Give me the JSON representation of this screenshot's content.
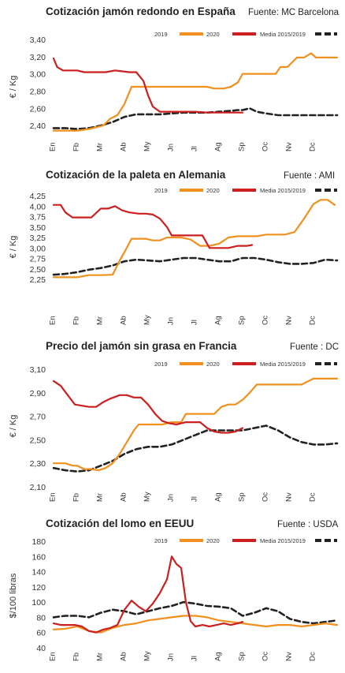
{
  "legend": {
    "series": [
      {
        "name": "2019",
        "color": "#f0901e",
        "style": "solid"
      },
      {
        "name": "2020",
        "color": "#cc1f1f",
        "style": "solid"
      },
      {
        "name": "Media 2015/2019",
        "color": "#222222",
        "style": "dashed"
      }
    ]
  },
  "months": [
    "En",
    "Fb",
    "Mr",
    "Ab",
    "My",
    "Jn",
    "Jl",
    "Ag",
    "Sp",
    "Oc",
    "Nv",
    "Dc"
  ],
  "chart_data": [
    {
      "type": "line",
      "title": "Cotización jamón redondo en España",
      "source": "Fuente: MC Barcelona",
      "ylabel": "€ / Kg",
      "ylim": [
        2.3,
        3.4
      ],
      "yticks": [
        "3,40",
        "3,20",
        "3,00",
        "2,80",
        "2,60",
        "2,40"
      ],
      "ytick_values": [
        3.4,
        3.2,
        3.0,
        2.8,
        2.6,
        2.4
      ],
      "series": [
        {
          "name": "2019",
          "color": "#f0901e",
          "style": "solid",
          "x": [
            0,
            0.4,
            1,
            1.5,
            1.8,
            2.1,
            2.4,
            2.7,
            3.0,
            3.3,
            3.5,
            3.8,
            4.2,
            5,
            6,
            6.5,
            6.8,
            7.2,
            7.5,
            7.8,
            8.0,
            8.5,
            9,
            9.4,
            9.6,
            9.9,
            10.3,
            10.6,
            10.9,
            11.1,
            11.3,
            11.6,
            12
          ],
          "y": [
            2.34,
            2.34,
            2.34,
            2.36,
            2.38,
            2.4,
            2.48,
            2.52,
            2.65,
            2.85,
            2.85,
            2.85,
            2.85,
            2.85,
            2.85,
            2.85,
            2.83,
            2.83,
            2.85,
            2.9,
            3.0,
            3.0,
            3.0,
            3.0,
            3.08,
            3.08,
            3.19,
            3.19,
            3.24,
            3.19,
            3.19,
            3.19,
            3.19
          ]
        },
        {
          "name": "2020",
          "color": "#cc1f1f",
          "style": "solid",
          "x": [
            0,
            0.15,
            0.4,
            0.7,
            1,
            1.3,
            1.6,
            2.0,
            2.2,
            2.6,
            2.9,
            3.2,
            3.5,
            3.8,
            4.0,
            4.2,
            4.5,
            5,
            5.5,
            6,
            6.5,
            7,
            7.5,
            8.0
          ],
          "y": [
            3.18,
            3.08,
            3.04,
            3.04,
            3.04,
            3.02,
            3.02,
            3.02,
            3.02,
            3.04,
            3.03,
            3.02,
            3.02,
            2.92,
            2.75,
            2.62,
            2.56,
            2.56,
            2.56,
            2.56,
            2.55,
            2.55,
            2.55,
            2.55
          ]
        },
        {
          "name": "Media 2015/2019",
          "color": "#222222",
          "style": "dashed",
          "x": [
            0,
            0.5,
            1,
            1.5,
            2,
            2.5,
            3,
            3.5,
            4,
            4.5,
            5,
            5.5,
            6,
            6.5,
            7,
            7.5,
            7.8,
            8.0,
            8.3,
            8.6,
            9,
            9.5,
            10,
            10.5,
            11,
            11.5,
            12
          ],
          "y": [
            2.37,
            2.37,
            2.36,
            2.37,
            2.4,
            2.44,
            2.5,
            2.53,
            2.53,
            2.53,
            2.54,
            2.55,
            2.55,
            2.55,
            2.56,
            2.57,
            2.58,
            2.58,
            2.6,
            2.56,
            2.54,
            2.52,
            2.52,
            2.52,
            2.52,
            2.52,
            2.52
          ]
        }
      ]
    },
    {
      "type": "line",
      "title": "Cotización de la paleta en Alemania",
      "source": "Fuente : AMI",
      "ylabel": "€ / Kg",
      "ylim": [
        2.25,
        4.25
      ],
      "yticks": [
        "4,25",
        "4,00",
        "3,75",
        "3,50",
        "3,25",
        "3,00",
        "2,75",
        "2,50",
        "2,25"
      ],
      "ytick_values": [
        4.25,
        4.0,
        3.75,
        3.5,
        3.25,
        3.0,
        2.75,
        2.5,
        2.25
      ],
      "series": [
        {
          "name": "2019",
          "color": "#f0901e",
          "style": "solid",
          "x": [
            0,
            0.5,
            1,
            1.5,
            2,
            2.5,
            2.8,
            3.0,
            3.3,
            3.6,
            3.9,
            4.2,
            4.5,
            4.8,
            5.1,
            5.4,
            5.8,
            6.2,
            6.6,
            7.0,
            7.4,
            7.8,
            8.2,
            8.6,
            9,
            9.4,
            9.8,
            10.2,
            10.6,
            11.0,
            11.3,
            11.6,
            11.9
          ],
          "y": [
            2.3,
            2.3,
            2.3,
            2.35,
            2.35,
            2.36,
            2.7,
            2.9,
            3.22,
            3.22,
            3.22,
            3.18,
            3.18,
            3.25,
            3.25,
            3.25,
            3.2,
            3.05,
            3.05,
            3.1,
            3.25,
            3.28,
            3.28,
            3.28,
            3.32,
            3.32,
            3.32,
            3.38,
            3.7,
            4.05,
            4.15,
            4.15,
            4.03
          ]
        },
        {
          "name": "2020",
          "color": "#cc1f1f",
          "style": "solid",
          "x": [
            0,
            0.3,
            0.5,
            0.8,
            1,
            1.3,
            1.6,
            2.0,
            2.3,
            2.6,
            2.9,
            3.2,
            3.6,
            3.9,
            4.2,
            4.5,
            4.8,
            5.0,
            5.3,
            5.6,
            6.0,
            6.3,
            6.6,
            7.0,
            7.4,
            7.8,
            8.2,
            8.4
          ],
          "y": [
            4.03,
            4.03,
            3.85,
            3.73,
            3.73,
            3.73,
            3.73,
            3.94,
            3.94,
            4.0,
            3.9,
            3.85,
            3.82,
            3.82,
            3.8,
            3.7,
            3.5,
            3.3,
            3.3,
            3.3,
            3.3,
            3.3,
            3.0,
            3.0,
            3.0,
            3.05,
            3.05,
            3.07
          ]
        },
        {
          "name": "Media 2015/2019",
          "color": "#222222",
          "style": "dashed",
          "x": [
            0,
            0.5,
            1,
            1.5,
            2,
            2.5,
            3,
            3.5,
            4,
            4.5,
            5,
            5.5,
            6,
            6.5,
            7,
            7.5,
            8,
            8.5,
            9,
            9.5,
            10,
            10.5,
            11,
            11.5,
            12
          ],
          "y": [
            2.36,
            2.38,
            2.42,
            2.48,
            2.52,
            2.58,
            2.68,
            2.72,
            2.7,
            2.68,
            2.72,
            2.76,
            2.76,
            2.72,
            2.68,
            2.68,
            2.76,
            2.76,
            2.72,
            2.66,
            2.62,
            2.62,
            2.64,
            2.72,
            2.7
          ]
        }
      ]
    },
    {
      "type": "line",
      "title": "Precio del jamón sin grasa en Francia",
      "source": "Fuente : DC",
      "ylabel": "€ / Kg",
      "ylim": [
        2.1,
        3.1
      ],
      "yticks": [
        "3,10",
        "2,90",
        "2,70",
        "2,50",
        "2,30",
        "2,10"
      ],
      "ytick_values": [
        3.1,
        2.9,
        2.7,
        2.5,
        2.3,
        2.1
      ],
      "series": [
        {
          "name": "2019",
          "color": "#f0901e",
          "style": "solid",
          "x": [
            0,
            0.5,
            0.8,
            1.0,
            1.3,
            1.6,
            1.9,
            2.2,
            2.5,
            2.8,
            3.1,
            3.4,
            3.6,
            3.8,
            4.2,
            4.6,
            5,
            5.4,
            5.6,
            6,
            6.4,
            6.8,
            7.1,
            7.4,
            7.7,
            8.0,
            8.3,
            8.6,
            9,
            9.5,
            10,
            10.5,
            11,
            11.5,
            12
          ],
          "y": [
            2.3,
            2.3,
            2.28,
            2.28,
            2.25,
            2.25,
            2.24,
            2.26,
            2.3,
            2.38,
            2.48,
            2.58,
            2.63,
            2.63,
            2.63,
            2.63,
            2.65,
            2.65,
            2.72,
            2.72,
            2.72,
            2.72,
            2.78,
            2.8,
            2.8,
            2.84,
            2.9,
            2.97,
            2.97,
            2.97,
            2.97,
            2.97,
            3.02,
            3.02,
            3.02
          ]
        },
        {
          "name": "2020",
          "color": "#cc1f1f",
          "style": "solid",
          "x": [
            0,
            0.3,
            0.6,
            0.9,
            1.2,
            1.5,
            1.8,
            2.1,
            2.4,
            2.8,
            3.1,
            3.4,
            3.7,
            4.0,
            4.3,
            4.6,
            4.9,
            5.2,
            5.6,
            5.9,
            6.2,
            6.5,
            6.8,
            7.1,
            7.4,
            7.7,
            8.0
          ],
          "y": [
            3.0,
            2.96,
            2.88,
            2.8,
            2.79,
            2.78,
            2.78,
            2.82,
            2.85,
            2.88,
            2.88,
            2.86,
            2.86,
            2.8,
            2.72,
            2.66,
            2.64,
            2.63,
            2.65,
            2.65,
            2.65,
            2.6,
            2.57,
            2.56,
            2.56,
            2.57,
            2.6
          ]
        },
        {
          "name": "Media 2015/2019",
          "color": "#222222",
          "style": "dashed",
          "x": [
            0,
            0.5,
            1,
            1.5,
            2,
            2.5,
            3,
            3.5,
            4,
            4.5,
            5,
            5.5,
            6,
            6.5,
            7,
            7.5,
            8,
            8.5,
            9,
            9.5,
            10,
            10.5,
            11,
            11.5,
            12
          ],
          "y": [
            2.26,
            2.24,
            2.23,
            2.24,
            2.28,
            2.32,
            2.38,
            2.42,
            2.44,
            2.44,
            2.46,
            2.5,
            2.54,
            2.58,
            2.58,
            2.58,
            2.58,
            2.6,
            2.62,
            2.58,
            2.52,
            2.48,
            2.46,
            2.46,
            2.47
          ]
        }
      ]
    },
    {
      "type": "line",
      "title": "Cotización del lomo en EEUU",
      "source": "Fuente : USDA",
      "ylabel": "$/100 libras",
      "ylim": [
        40,
        180
      ],
      "yticks": [
        "180",
        "160",
        "140",
        "120",
        "100",
        "80",
        "60",
        "40"
      ],
      "ytick_values": [
        180,
        160,
        140,
        120,
        100,
        80,
        60,
        40
      ],
      "series": [
        {
          "name": "2019",
          "color": "#f0901e",
          "style": "solid",
          "x": [
            0,
            0.5,
            1,
            1.5,
            2,
            2.5,
            3,
            3.5,
            4,
            4.5,
            5,
            5.5,
            6,
            6.5,
            7,
            7.5,
            8,
            8.5,
            9,
            9.5,
            10,
            10.5,
            11,
            11.5,
            12
          ],
          "y": [
            64,
            65,
            68,
            62,
            60,
            66,
            70,
            72,
            76,
            78,
            80,
            82,
            82,
            80,
            76,
            74,
            72,
            70,
            68,
            70,
            70,
            68,
            70,
            72,
            70
          ]
        },
        {
          "name": "2020",
          "color": "#cc1f1f",
          "style": "solid",
          "x": [
            0,
            0.3,
            0.6,
            0.9,
            1.2,
            1.5,
            1.8,
            2.1,
            2.4,
            2.7,
            3.0,
            3.3,
            3.6,
            3.9,
            4.2,
            4.5,
            4.8,
            5.0,
            5.2,
            5.4,
            5.6,
            5.8,
            6.0,
            6.3,
            6.6,
            6.9,
            7.2,
            7.5,
            7.8,
            8.0
          ],
          "y": [
            72,
            70,
            70,
            70,
            68,
            62,
            60,
            64,
            66,
            70,
            90,
            102,
            94,
            88,
            98,
            112,
            130,
            160,
            150,
            145,
            100,
            75,
            68,
            70,
            68,
            70,
            72,
            70,
            72,
            74
          ]
        },
        {
          "name": "Media 2015/2019",
          "color": "#222222",
          "style": "dashed",
          "x": [
            0,
            0.5,
            1,
            1.5,
            2,
            2.5,
            3,
            3.5,
            4,
            4.5,
            5,
            5.5,
            6,
            6.5,
            7,
            7.5,
            8,
            8.5,
            9,
            9.5,
            10,
            10.5,
            11,
            11.5,
            12
          ],
          "y": [
            80,
            82,
            82,
            80,
            86,
            90,
            88,
            84,
            88,
            92,
            95,
            100,
            98,
            95,
            94,
            92,
            82,
            86,
            92,
            88,
            78,
            74,
            72,
            74,
            76
          ]
        }
      ]
    }
  ]
}
